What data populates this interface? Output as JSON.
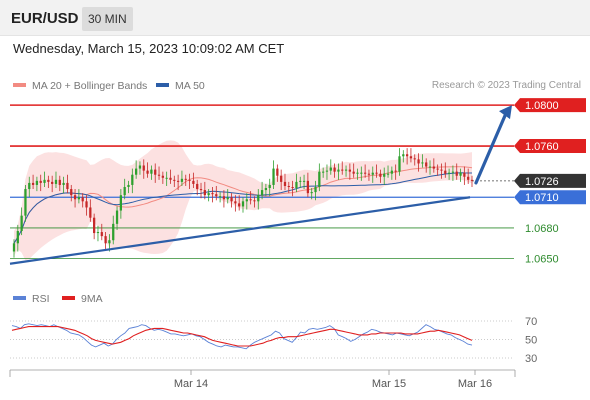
{
  "header": {
    "symbol": "EUR/USD",
    "interval": "30 MIN"
  },
  "datetime": "Wednesday, March 15, 2023 10:09:02 AM CET",
  "legend": {
    "bollinger": {
      "label": "MA 20 + Bollinger Bands",
      "color": "#f28b82"
    },
    "ma50": {
      "label": "MA 50",
      "color": "#2c5ea8"
    }
  },
  "credit": "Research © 2023 Trading Central",
  "rsi_legend": {
    "rsi": {
      "label": "RSI",
      "color": "#5b82d6"
    },
    "ma9": {
      "label": "9MA",
      "color": "#e02020"
    }
  },
  "colors": {
    "bull": "#2ea02e",
    "bear": "#c62828",
    "resistance": "#e02020",
    "pivot": "#3a6fd8",
    "support": "#2e8b2e",
    "trend": "#2c5ea8",
    "current": "#444444"
  },
  "chart_data": [
    {
      "type": "candlestick",
      "pair": "EUR/USD",
      "timeframe": "30 MIN",
      "x_ticks": [
        "Mar 14",
        "Mar 15",
        "Mar 16"
      ],
      "levels": [
        {
          "value": "1.0800",
          "kind": "resistance"
        },
        {
          "value": "1.0760",
          "kind": "resistance"
        },
        {
          "value": "1.0726",
          "kind": "current"
        },
        {
          "value": "1.0710",
          "kind": "pivot"
        },
        {
          "value": "1.0680",
          "kind": "support"
        },
        {
          "value": "1.0650",
          "kind": "support"
        }
      ],
      "ylim": [
        1.0635,
        1.0805
      ],
      "series": [
        {
          "name": "MA 20 + Bollinger Bands",
          "kind": "bands"
        },
        {
          "name": "MA 50",
          "kind": "line"
        }
      ],
      "close": [
        1.0665,
        1.0677,
        1.0692,
        1.0718,
        1.0724,
        1.0722,
        1.0726,
        1.0724,
        1.0727,
        1.0725,
        1.0723,
        1.0727,
        1.0722,
        1.0724,
        1.0718,
        1.0712,
        1.0708,
        1.071,
        1.0706,
        1.07,
        1.069,
        1.0675,
        1.0676,
        1.0672,
        1.0665,
        1.0668,
        1.0684,
        1.0697,
        1.0712,
        1.072,
        1.0722,
        1.0732,
        1.0738,
        1.0741,
        1.0736,
        1.0733,
        1.0737,
        1.0732,
        1.0731,
        1.0729,
        1.0729,
        1.0727,
        1.0726,
        1.0725,
        1.0728,
        1.0727,
        1.0726,
        1.0723,
        1.0718,
        1.0717,
        1.0712,
        1.0714,
        1.0713,
        1.0711,
        1.0711,
        1.0708,
        1.071,
        1.0706,
        1.0704,
        1.0701,
        1.0706,
        1.0708,
        1.0707,
        1.0706,
        1.0712,
        1.0717,
        1.0719,
        1.0722,
        1.0738,
        1.0731,
        1.0725,
        1.0721,
        1.072,
        1.0719,
        1.0725,
        1.0726,
        1.0726,
        1.0714,
        1.0715,
        1.072,
        1.0735,
        1.0735,
        1.0736,
        1.0739,
        1.0735,
        1.0737,
        1.0736,
        1.0737,
        1.0735,
        1.0733,
        1.0734,
        1.0734,
        1.0733,
        1.0732,
        1.0734,
        1.0733,
        1.073,
        1.0733,
        1.0733,
        1.0736,
        1.0735,
        1.075,
        1.0752,
        1.075,
        1.0748,
        1.0747,
        1.0743,
        1.0744,
        1.074,
        1.074,
        1.0738,
        1.0737,
        1.0736,
        1.0733,
        1.0734,
        1.0735,
        1.0731,
        1.0734,
        1.073,
        1.0727,
        1.0726
      ]
    },
    {
      "type": "line",
      "name": "RSI",
      "ylim": [
        30,
        70
      ],
      "y_ticks": [
        70,
        50,
        30
      ],
      "series": [
        {
          "name": "RSI",
          "values": [
            65,
            64,
            62,
            66,
            67,
            66,
            65,
            66,
            65,
            64,
            66,
            64,
            62,
            60,
            57,
            56,
            55,
            52,
            48,
            44,
            42,
            44,
            46,
            43,
            45,
            50,
            54,
            57,
            62,
            63,
            64,
            66,
            65,
            62,
            60,
            61,
            60,
            58,
            56,
            56,
            55,
            54,
            55,
            56,
            54,
            53,
            50,
            47,
            45,
            43,
            42,
            44,
            43,
            42,
            42,
            41,
            40,
            44,
            47,
            49,
            51,
            53,
            55,
            59,
            57,
            51,
            49,
            47,
            52,
            58,
            57,
            61,
            62,
            61,
            62,
            63,
            65,
            62,
            55,
            53,
            51,
            48,
            50,
            53,
            56,
            58,
            61,
            60,
            58,
            57,
            56,
            55,
            57,
            56,
            55,
            54,
            56,
            58,
            62,
            66,
            64,
            61,
            60,
            58,
            56,
            55,
            52,
            50,
            48,
            45,
            44
          ]
        },
        {
          "name": "9MA",
          "values": [
            60,
            61,
            62,
            63,
            64,
            64,
            64,
            64,
            64,
            64,
            64,
            64,
            63,
            62,
            61,
            60,
            58,
            56,
            54,
            51,
            49,
            48,
            47,
            46,
            45,
            46,
            47,
            49,
            51,
            54,
            56,
            58,
            60,
            61,
            62,
            62,
            62,
            61,
            60,
            59,
            58,
            57,
            57,
            56,
            55,
            54,
            53,
            51,
            49,
            48,
            47,
            46,
            45,
            44,
            43,
            43,
            43,
            43,
            44,
            45,
            46,
            48,
            49,
            51,
            52,
            52,
            53,
            53,
            53,
            54,
            55,
            56,
            57,
            58,
            59,
            60,
            61,
            61,
            60,
            59,
            58,
            57,
            56,
            55,
            55,
            55,
            56,
            56,
            57,
            57,
            57,
            57,
            57,
            57,
            56,
            56,
            56,
            56,
            57,
            58,
            59,
            59,
            60,
            59,
            58,
            57,
            56,
            55,
            53,
            51,
            49
          ]
        }
      ]
    }
  ]
}
